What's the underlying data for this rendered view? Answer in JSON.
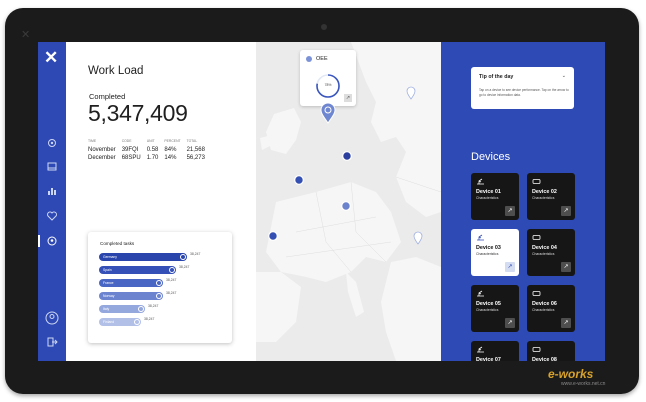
{
  "workload": {
    "title": "Work Load",
    "completed_label": "Completed",
    "completed_value": "5,347,409",
    "table": {
      "headers": [
        "TIME",
        "CODE",
        "UNIT",
        "PERCENT",
        "TOTAL"
      ],
      "rows": [
        [
          "November",
          "39FQI",
          "0.58",
          "84%",
          "21,568"
        ],
        [
          "December",
          "68SPU",
          "1.70",
          "14%",
          "56,273"
        ]
      ]
    }
  },
  "tasks": {
    "title": "Completed tasks",
    "bars": [
      {
        "label": "Germany",
        "value": "38,247",
        "fill": 1.0,
        "color": "#2a46ad"
      },
      {
        "label": "Spain",
        "value": "38,247",
        "fill": 0.87,
        "color": "#3551b8"
      },
      {
        "label": "France",
        "value": "38,247",
        "fill": 0.73,
        "color": "#4a66c4"
      },
      {
        "label": "Norway",
        "value": "38,247",
        "fill": 0.73,
        "color": "#6c84d0"
      },
      {
        "label": "Italy",
        "value": "38,247",
        "fill": 0.52,
        "color": "#95a8de"
      },
      {
        "label": "Finland",
        "value": "38,247",
        "fill": 0.48,
        "color": "#b2c0e8"
      }
    ]
  },
  "oee": {
    "label": "OEE",
    "percent": "78%",
    "level": 0.78
  },
  "tip": {
    "title": "Tip of the day",
    "body": "Tap on a device to see device performance. Tap on the arrow to go to device information data."
  },
  "devices": {
    "title": "Devices",
    "items": [
      {
        "name": "Device 01",
        "sub": "Characteristics"
      },
      {
        "name": "Device 02",
        "sub": "Characteristics"
      },
      {
        "name": "Device 03",
        "sub": "Characteristics"
      },
      {
        "name": "Device 04",
        "sub": "Characteristics"
      },
      {
        "name": "Device 05",
        "sub": "Characteristics"
      },
      {
        "name": "Device 06",
        "sub": "Characteristics"
      },
      {
        "name": "Device 07",
        "sub": ""
      },
      {
        "name": "Device 08",
        "sub": ""
      }
    ]
  },
  "watermark": {
    "brand": "e-works",
    "site": "www.e-works.net.cn"
  },
  "colors": {
    "primary": "#2e4ab5",
    "card_dark": "#161616",
    "map": "#ebebeb"
  }
}
